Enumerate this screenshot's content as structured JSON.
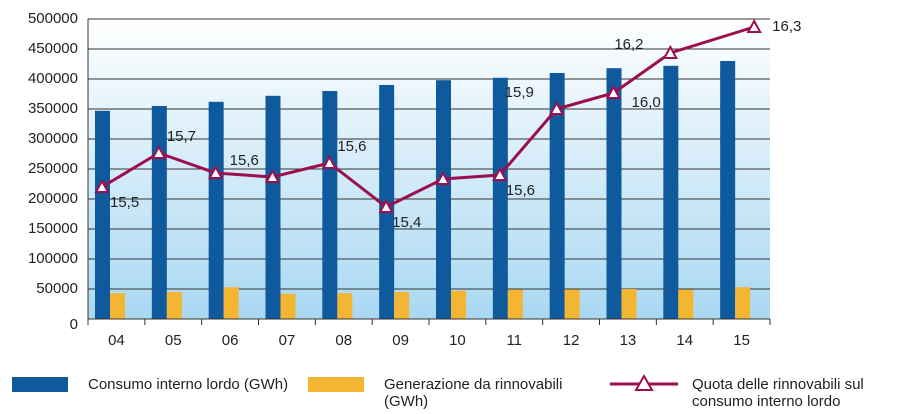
{
  "chart_data": {
    "type": "bar",
    "categories": [
      "04",
      "05",
      "06",
      "07",
      "08",
      "09",
      "10",
      "11",
      "12",
      "13",
      "14",
      "15"
    ],
    "series": [
      {
        "name": "Consumo interno lordo (GWh)",
        "color": "#0f5a9c",
        "values": [
          347000,
          355000,
          362000,
          372000,
          380000,
          390000,
          398000,
          402000,
          410000,
          418000,
          422000,
          430000
        ]
      },
      {
        "name": "Generazione da rinnovabili (GWh)",
        "color": "#f2b632",
        "values": [
          43000,
          45000,
          53000,
          42000,
          43000,
          45000,
          47000,
          49000,
          49000,
          50000,
          49000,
          53000
        ]
      },
      {
        "name": "Quota delle rinnovabili sul consumo interno lordo",
        "color": "#9c0f4f",
        "type": "line",
        "axis": "y2",
        "values": [
          15.5,
          15.67,
          15.57,
          15.55,
          15.62,
          15.4,
          15.54,
          15.56,
          15.89,
          15.97,
          16.17,
          16.3
        ],
        "value_labels": [
          "15,5",
          "15,7",
          "15,6",
          null,
          "15,6",
          "15,4",
          null,
          "15,6",
          "15,9",
          "16,0",
          "16,2",
          "16,3"
        ]
      }
    ],
    "ylim": [
      0,
      500000
    ],
    "yticks": [
      0,
      50000,
      100000,
      150000,
      200000,
      250000,
      300000,
      350000,
      400000,
      450000,
      500000
    ],
    "y2lim": [
      14.84,
      16.34
    ],
    "grid": true
  }
}
